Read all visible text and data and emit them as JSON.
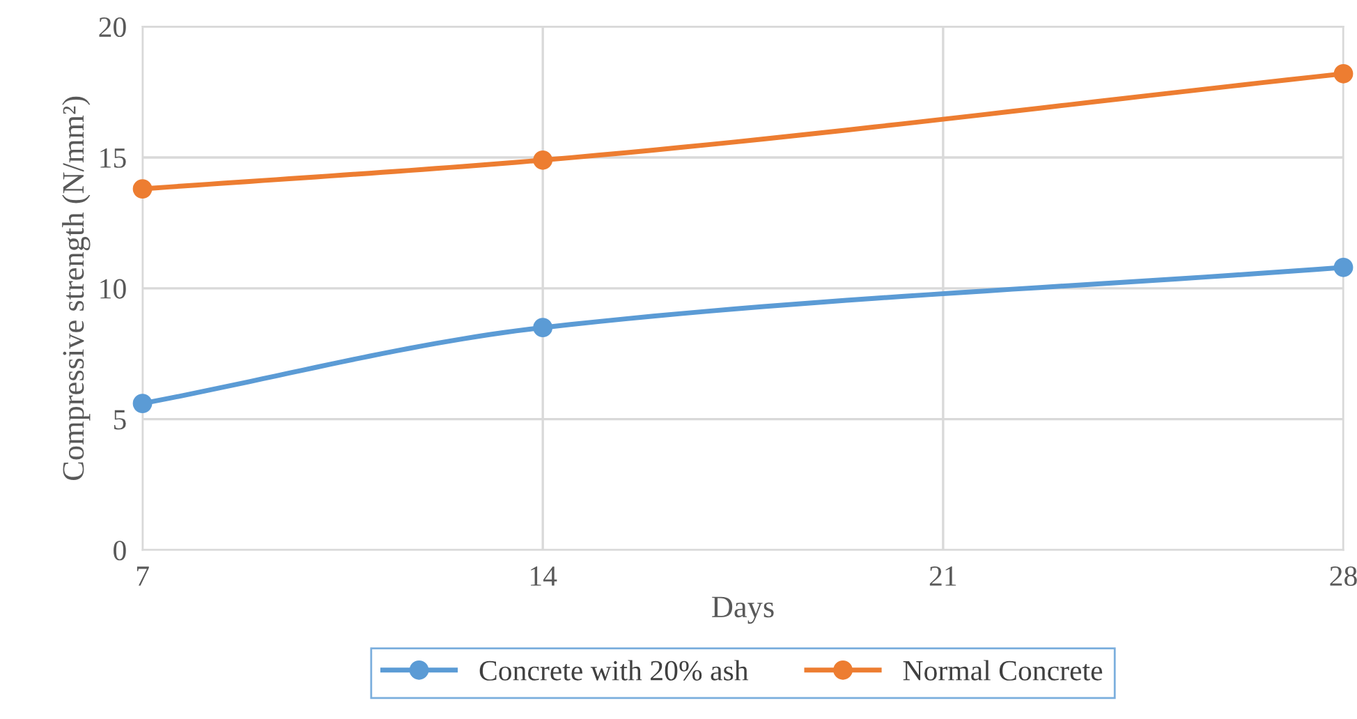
{
  "chart_data": {
    "type": "line",
    "xlabel": "Days",
    "ylabel": "Compressive strength (N/mm²)",
    "x": [
      7,
      14,
      28
    ],
    "series": [
      {
        "name": "Concrete with 20% ash",
        "color": "#5b9bd5",
        "values": [
          5.6,
          8.5,
          10.8
        ]
      },
      {
        "name": "Normal Concrete",
        "color": "#ed7d31",
        "values": [
          13.8,
          14.9,
          18.2
        ]
      }
    ],
    "xlim": [
      7,
      28
    ],
    "xticks": [
      7,
      14,
      21,
      28
    ],
    "ylim": [
      0,
      20
    ],
    "yticks": [
      0,
      5,
      10,
      15,
      20
    ],
    "grid": true,
    "legend": "bottom",
    "marker": "circle",
    "line_style": "solid"
  }
}
